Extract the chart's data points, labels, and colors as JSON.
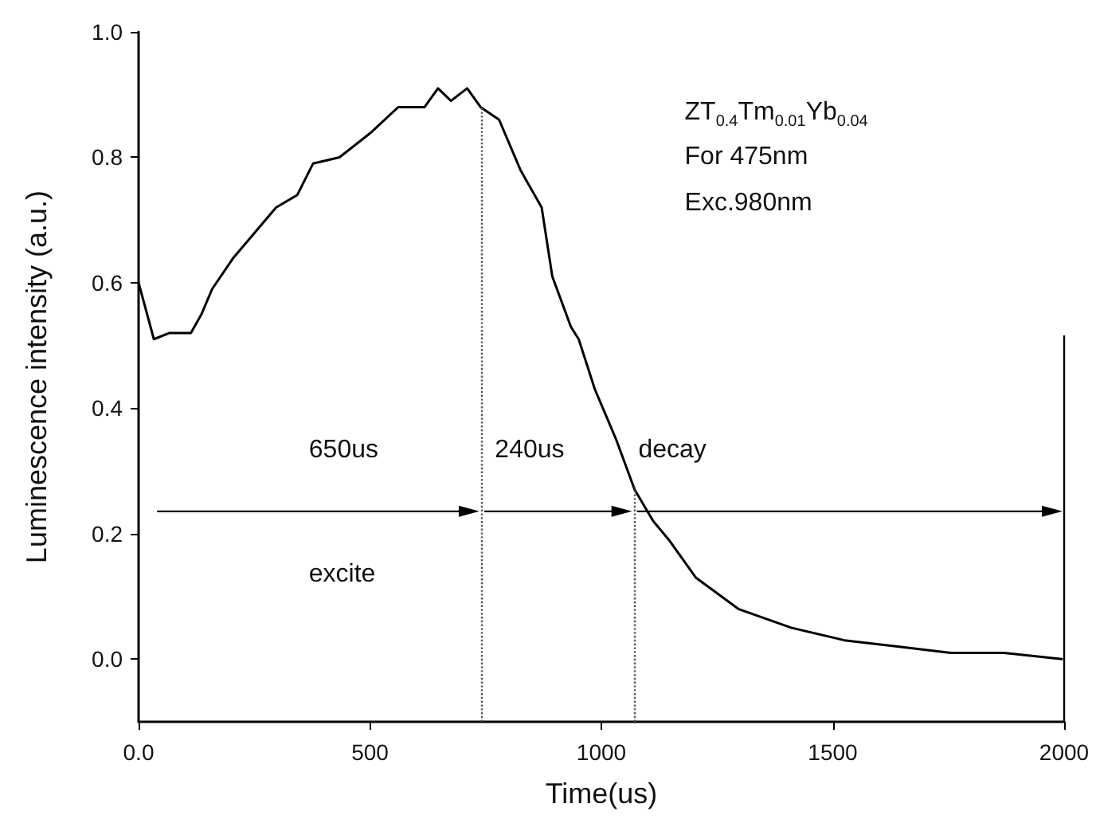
{
  "chart_data": {
    "type": "line",
    "xlabel": "Time(us)",
    "ylabel": "Luminescence intensity (a.u.)",
    "annotations": [
      "ZT$_{0.4}$Tm$_{0.01}$Yb$_{0.04}$",
      "For 475nm",
      "Exc.980nm",
      "650us",
      "240us",
      "decay",
      "excite"
    ],
    "x": [
      0,
      33,
      67,
      113,
      136,
      159,
      205,
      251,
      297,
      343,
      377,
      434,
      503,
      561,
      618,
      647,
      675,
      710,
      739,
      779,
      825,
      871,
      894,
      934,
      951,
      986,
      1032,
      1072,
      1112,
      1146,
      1204,
      1296,
      1410,
      1525,
      1640,
      1755,
      1870,
      1995
    ],
    "series": [
      {
        "color": "#000000",
        "values": [
          0.6,
          0.51,
          0.52,
          0.52,
          0.55,
          0.59,
          0.64,
          0.68,
          0.72,
          0.74,
          0.79,
          0.8,
          0.84,
          0.88,
          0.88,
          0.91,
          0.89,
          0.91,
          0.88,
          0.86,
          0.78,
          0.72,
          0.61,
          0.53,
          0.51,
          0.43,
          0.35,
          0.27,
          0.22,
          0.19,
          0.13,
          0.08,
          0.05,
          0.03,
          0.02,
          0.01,
          0.01,
          0.0
        ]
      }
    ],
    "xlim": [
      0,
      2000
    ],
    "xticks": [
      {
        "value": 0,
        "label": "0.0"
      },
      500,
      1000,
      1500,
      2000
    ],
    "ylim": [
      -0.1,
      1.0
    ],
    "yticks": [
      {
        "value": 0,
        "label": "0.0"
      },
      {
        "value": 0.2,
        "label": "0.2"
      },
      {
        "value": 0.4,
        "label": "0.4"
      },
      {
        "value": 0.6,
        "label": "0.6"
      },
      {
        "value": 0.8,
        "label": "0.8"
      },
      {
        "value": 1.0,
        "label": "1.0"
      }
    ],
    "ref_lines": [
      {
        "axis": "x",
        "value": 740,
        "line_style": "dotted",
        "color": "#555555"
      },
      {
        "axis": "x",
        "value": 1070,
        "line_style": "dotted",
        "color": "#555555"
      }
    ],
    "marker": "none",
    "line_style": "solid"
  }
}
